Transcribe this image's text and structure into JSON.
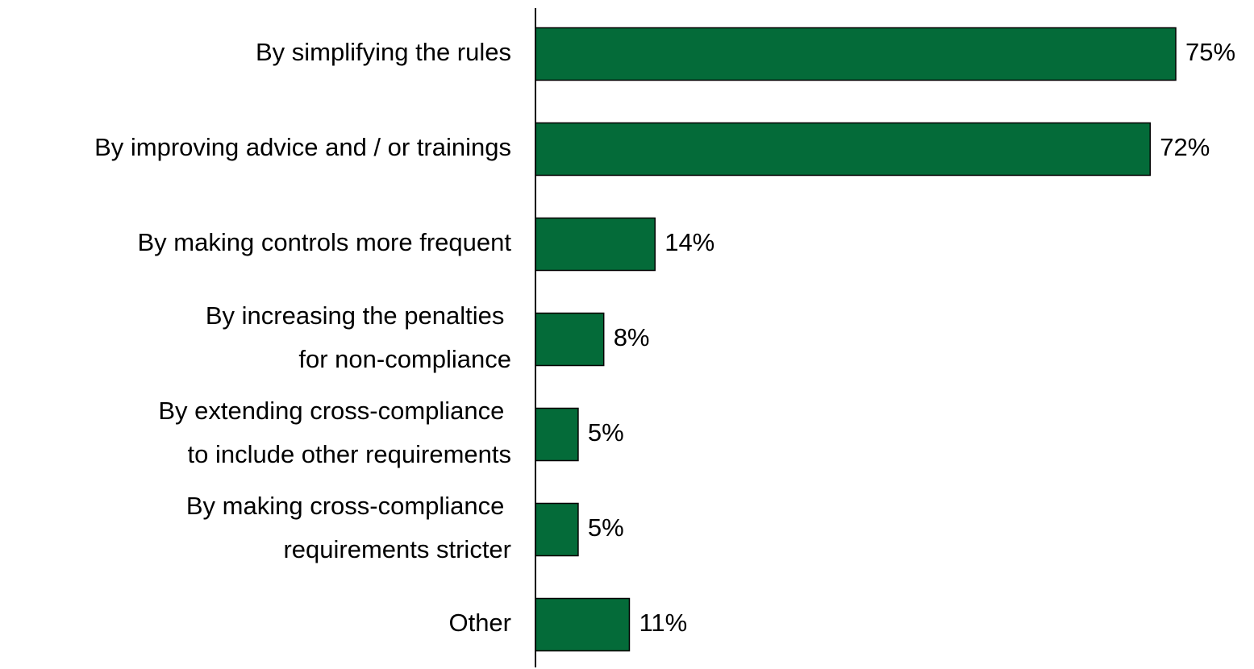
{
  "chart_data": {
    "type": "bar",
    "orientation": "horizontal",
    "categories": [
      "By simplifying the rules",
      "By improving advice and / or trainings",
      "By making controls more frequent",
      "By increasing the penalties \nfor non-compliance",
      "By extending cross-compliance \nto include other requirements",
      "By making cross-compliance \nrequirements stricter",
      "Other"
    ],
    "values": [
      75,
      72,
      14,
      8,
      5,
      5,
      11
    ],
    "value_labels": [
      "75%",
      "72%",
      "14%",
      "8%",
      "5%",
      "5%",
      "11%"
    ],
    "color": "#046b39",
    "xlim": [
      0,
      75
    ]
  }
}
